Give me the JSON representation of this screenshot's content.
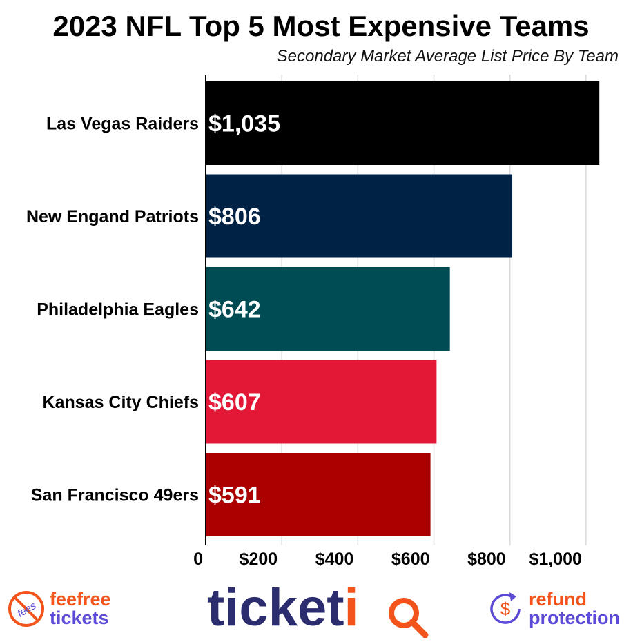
{
  "chart_data": {
    "type": "bar",
    "orientation": "horizontal",
    "title": "2023 NFL Top 5 Most Expensive Teams",
    "subtitle": "Secondary Market Average List Price By Team",
    "categories": [
      "Las Vegas Raiders",
      "New Engand Patriots",
      "Philadelphia Eagles",
      "Kansas City Chiefs",
      "San Francisco 49ers"
    ],
    "values": [
      1035,
      806,
      642,
      607,
      591
    ],
    "value_labels": [
      "$1,035",
      "$806",
      "$642",
      "$607",
      "$591"
    ],
    "bar_colors": [
      "#000000",
      "#002244",
      "#004C54",
      "#E31837",
      "#AA0000"
    ],
    "xlim": [
      0,
      1100
    ],
    "xticks": [
      0,
      200,
      400,
      600,
      800,
      1000
    ],
    "xtick_labels": [
      "0",
      "$200",
      "$400",
      "$600",
      "$800",
      "$1,000"
    ],
    "grid": true,
    "legend": "none"
  },
  "footer": {
    "fee_badge": {
      "line1": "feefree",
      "line2": "tickets",
      "icon_text": "fees",
      "icon": "no-fees-icon"
    },
    "brand": {
      "text": "ticketiQ",
      "color": "#2b2d6e",
      "accent": "#f2541b"
    },
    "refund_badge": {
      "line1": "refund",
      "line2": "protection",
      "icon": "refund-dollar-icon"
    },
    "colors": {
      "orange": "#f2541b",
      "purple": "#5b4bd6"
    }
  }
}
